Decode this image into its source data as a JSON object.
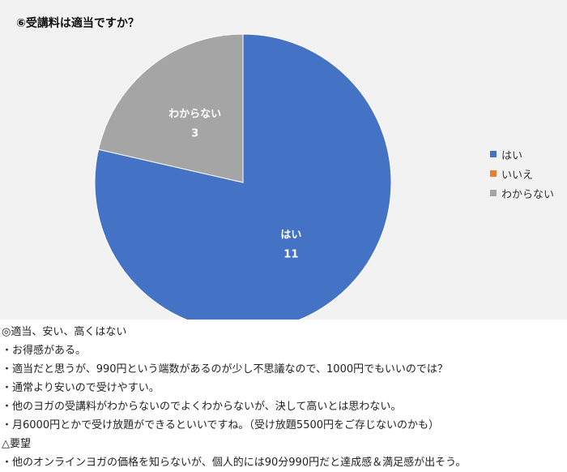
{
  "chart_data": {
    "type": "pie",
    "title": "⑥受講料は適当ですか？",
    "categories": [
      "はい",
      "いいえ",
      "わからない"
    ],
    "values": [
      11,
      0,
      3
    ],
    "colors": [
      "#4472c4",
      "#ed7d31",
      "#a5a5a5"
    ],
    "legend_position": "right",
    "data_labels": [
      {
        "category": "はい",
        "value": "11"
      },
      {
        "category": "わからない",
        "value": "3"
      }
    ]
  },
  "notes": [
    "◎適当、安い、高くはない",
    "・お得感がある。",
    "・適当だと思うが、990円という端数があるのが少し不思議なので、1000円でもいいのでは？",
    "・通常より安いので受けやすい。",
    "・他のヨガの受講料がわからないのでよくわからないが、決して高いとは思わない。",
    "・月6000円とかで受け放題ができるといいですね。（受け放題5500円をご存じないのかも）",
    "△要望",
    "・他のオンラインヨガの価格を知らないが、個人的には90分990円だと達成感＆満足感が出そう。"
  ]
}
